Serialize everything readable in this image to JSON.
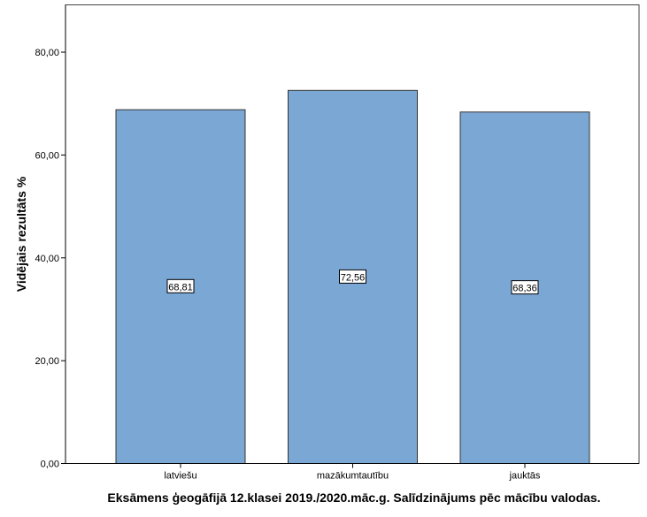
{
  "chart_data": {
    "type": "bar",
    "categories": [
      "latviešu",
      "mazākumtautību",
      "jauktās"
    ],
    "values": [
      68.81,
      72.56,
      68.36
    ],
    "data_labels": [
      "68,81",
      "72,56",
      "68,36"
    ],
    "title": "",
    "xlabel": "Eksāmens ģeogāfijā 12.klasei 2019./2020.māc.g. Salīdzinājums pēc mācību valodas.",
    "ylabel": "Vidējais rezultāts %",
    "ylim": [
      0,
      89.2
    ],
    "yticks": [
      0,
      20,
      40,
      60,
      80
    ],
    "ytick_labels": [
      "0,00",
      "20,00",
      "40,00",
      "60,00",
      "80,00"
    ],
    "grid": false,
    "bar_color": "#7BA7D5",
    "bar_edge_color": "#333333"
  }
}
